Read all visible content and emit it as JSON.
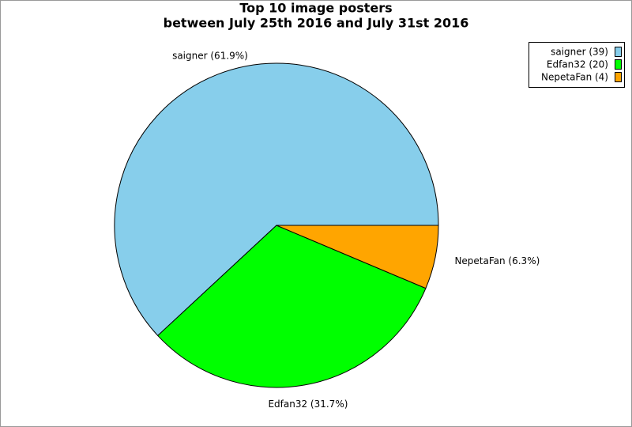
{
  "chart_data": {
    "type": "pie",
    "title": "Top 10 image posters",
    "subtitle": "between July 25th 2016 and July 31st 2016",
    "categories": [
      "saigner",
      "Edfan32",
      "NepetaFan"
    ],
    "values": [
      39,
      20,
      4
    ],
    "colors": [
      "#87ceeb",
      "#00ff00",
      "#ffa500"
    ],
    "slice_labels": [
      "saigner (61.9%)",
      "Edfan32 (31.7%)",
      "NepetaFan (6.3%)"
    ],
    "legend_labels": [
      "saigner (39)",
      "Edfan32 (20)",
      "NepetaFan (4)"
    ],
    "legend": "top-right"
  }
}
